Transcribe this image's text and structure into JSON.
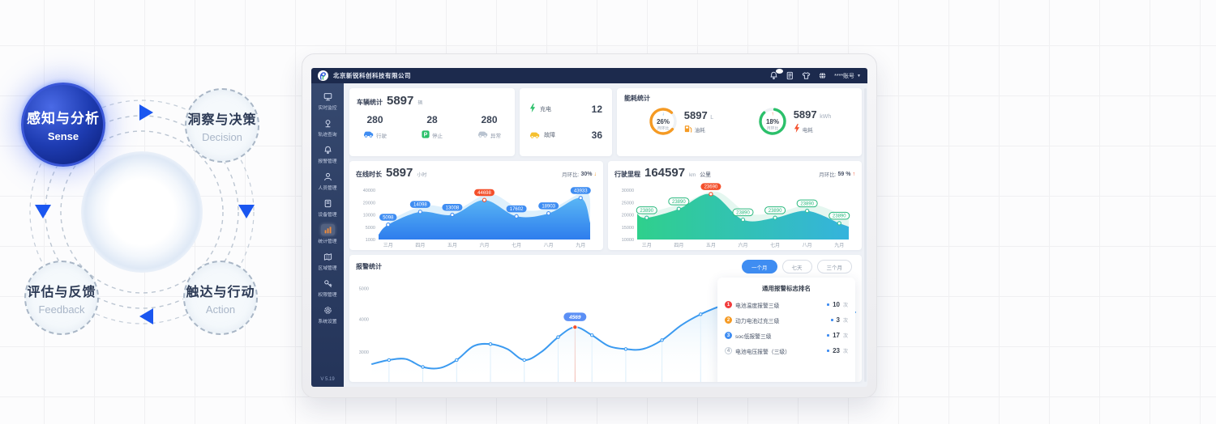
{
  "colors": {
    "accent_blue": "#3f8df2",
    "navy": "#1c2a4d",
    "orange": "#f59a23",
    "green": "#2bc06a",
    "red": "#f4502c",
    "teal": "#2fd08c"
  },
  "diagram": {
    "nodes": [
      {
        "id": "sense",
        "title": "感知与分析",
        "subtitle": "Sense",
        "active": true
      },
      {
        "id": "decision",
        "title": "洞察与决策",
        "subtitle": "Decision",
        "active": false
      },
      {
        "id": "feedback",
        "title": "评估与反馈",
        "subtitle": "Feedback",
        "active": false
      },
      {
        "id": "action",
        "title": "触达与行动",
        "subtitle": "Action",
        "active": false
      }
    ]
  },
  "navbar": {
    "company": "北京新锐科创科技有限公司",
    "account": "****账号",
    "icons": [
      "bell-icon",
      "document-icon",
      "theme-shirt-icon",
      "globe-icon"
    ]
  },
  "sidebar": {
    "version": "V 5.19",
    "items": [
      {
        "label": "实时监控",
        "icon": "monitor-icon",
        "active": false
      },
      {
        "label": "轨迹查询",
        "icon": "track-icon",
        "active": false
      },
      {
        "label": "报警管理",
        "icon": "alarm-icon",
        "active": false
      },
      {
        "label": "人员管理",
        "icon": "user-icon",
        "active": false
      },
      {
        "label": "设备管理",
        "icon": "device-icon",
        "active": false
      },
      {
        "label": "统计管理",
        "icon": "stats-icon",
        "active": true
      },
      {
        "label": "区域管理",
        "icon": "region-icon",
        "active": false
      },
      {
        "label": "权限管理",
        "icon": "permission-icon",
        "active": false
      },
      {
        "label": "系统设置",
        "icon": "settings-icon",
        "active": false
      }
    ]
  },
  "vehicle_card": {
    "title": "车辆统计",
    "total": "5897",
    "unit": "辆",
    "stats": [
      {
        "value": "280",
        "label": "行驶",
        "icon": "car-icon",
        "color": "#3f8df2"
      },
      {
        "value": "28",
        "label": "停止",
        "icon": "parking-icon",
        "color": "#2bc06a"
      },
      {
        "value": "280",
        "label": "异常",
        "icon": "car-icon",
        "color": "#b9c3d0"
      }
    ]
  },
  "charging_card": {
    "rows": [
      {
        "label": "充电",
        "value": "12",
        "icon": "bolt-icon",
        "color": "#2bc06a"
      },
      {
        "label": "故障",
        "value": "36",
        "icon": "car-icon",
        "color": "#f5c02f"
      }
    ]
  },
  "energy_card": {
    "title": "能耗统计",
    "gauges": [
      {
        "percent": "26%",
        "caption": "月环比",
        "value": "5897",
        "unit": "L",
        "label": "油耗",
        "icon": "fuel-icon",
        "color": "#f59a23",
        "arrow": "down",
        "arrow_color": "#4aa3f0",
        "arc": 0.76,
        "rot": 40
      },
      {
        "percent": "18%",
        "caption": "月环比",
        "value": "5897",
        "unit": "kWh",
        "label": "电耗",
        "icon": "bolt-icon",
        "color": "#2bc06a",
        "arrow": "up",
        "arrow_color": "#f4502c",
        "arc": 0.85,
        "rot": -80
      }
    ]
  },
  "ranking": {
    "title": "通用报警标志排名",
    "count_unit": "次",
    "items": [
      {
        "rank": "1",
        "label": "电池温度报警三级",
        "count": "10",
        "color": "#f23c3c"
      },
      {
        "rank": "2",
        "label": "动力电池过充三级",
        "count": "3",
        "color": "#f59a23"
      },
      {
        "rank": "3",
        "label": "soc低报警三级",
        "count": "17",
        "color": "#3f8df2"
      },
      {
        "rank": "4",
        "label": "电池电压报警（三级）",
        "count": "23",
        "color": "outline"
      }
    ]
  },
  "chart_data": [
    {
      "id": "online",
      "type": "area",
      "title": "在线时长",
      "total": "5897",
      "unit": "小时",
      "mom_label": "月环比:",
      "mom_value": "30%",
      "mom_direction": "down",
      "mom_color": "#f59a23",
      "y_ticks": [
        "40000",
        "20000",
        "10000",
        "5000",
        "1000"
      ],
      "categories": [
        "三月",
        "四月",
        "五月",
        "六月",
        "七月",
        "八月",
        "九月"
      ],
      "values": [
        5098,
        14098,
        13008,
        44698,
        17602,
        18903,
        43933
      ],
      "hot_index": 3,
      "heights": [
        0.3,
        0.56,
        0.5,
        0.8,
        0.47,
        0.53,
        0.84
      ],
      "edge_heights": [
        0.1,
        0.34
      ],
      "badge_style": "fill",
      "colors": {
        "fill": [
          "#59b6f5",
          "#2e7ded"
        ],
        "gradient_dir": "v",
        "echo": "#cde8fa",
        "badge": "#3f8df2",
        "hot": "#f4502c",
        "dot": "#3f8df2"
      }
    },
    {
      "id": "mileage",
      "type": "area",
      "title": "行驶里程",
      "total": "164597",
      "unit": "km",
      "unit2": "公里",
      "mom_label": "月环比:",
      "mom_value": "59 %",
      "mom_direction": "up",
      "mom_color": "#f4502c",
      "y_ticks": [
        "30000",
        "25000",
        "20000",
        "15000",
        "10000"
      ],
      "categories": [
        "三月",
        "四月",
        "五月",
        "六月",
        "七月",
        "八月",
        "九月"
      ],
      "values": [
        23890,
        23890,
        23690,
        23890,
        23890,
        23890,
        23890
      ],
      "hot_index": 2,
      "heights": [
        0.44,
        0.62,
        0.92,
        0.4,
        0.44,
        0.58,
        0.33
      ],
      "edge_heights": [
        0.52,
        0.26
      ],
      "badge_style": "outline",
      "colors": {
        "fill": [
          "#2fd08c",
          "#35b3dd"
        ],
        "gradient_dir": "h",
        "echo": "#d7f3e8",
        "badge": "#27b87c",
        "hot": "#f4502c",
        "dot": "#2fbf9a"
      }
    },
    {
      "id": "alarm",
      "type": "line",
      "title": "报警统计",
      "tabs": [
        {
          "label": "一个月",
          "active": true
        },
        {
          "label": "七天",
          "active": false
        },
        {
          "label": "三个月",
          "active": false
        }
      ],
      "y_ticks": [
        "5000",
        "4000",
        "3000"
      ],
      "y_tick_heights": [
        0.94,
        0.63,
        0.3
      ],
      "tooltip": "4569",
      "marked_index": 12,
      "points": [
        [
          0.0,
          0.18
        ],
        [
          0.035,
          0.22
        ],
        [
          0.07,
          0.23
        ],
        [
          0.105,
          0.15
        ],
        [
          0.14,
          0.14
        ],
        [
          0.175,
          0.22
        ],
        [
          0.21,
          0.36
        ],
        [
          0.245,
          0.38
        ],
        [
          0.28,
          0.33
        ],
        [
          0.315,
          0.22
        ],
        [
          0.35,
          0.3
        ],
        [
          0.385,
          0.45
        ],
        [
          0.42,
          0.55
        ],
        [
          0.455,
          0.47
        ],
        [
          0.49,
          0.36
        ],
        [
          0.525,
          0.33
        ],
        [
          0.56,
          0.33
        ],
        [
          0.6,
          0.42
        ],
        [
          0.64,
          0.57
        ],
        [
          0.68,
          0.68
        ],
        [
          0.72,
          0.76
        ],
        [
          0.76,
          0.82
        ],
        [
          0.8,
          0.84
        ],
        [
          0.845,
          0.8
        ],
        [
          0.89,
          0.76
        ],
        [
          0.94,
          0.72
        ],
        [
          1.0,
          0.7
        ]
      ],
      "colors": {
        "line": "#3b9af0",
        "fill": [
          "#d9edfb",
          "#ffffff"
        ],
        "guide": "#d9edfb",
        "marked": "#f4502c",
        "tooltip_bg": "#5b8ff5"
      }
    }
  ]
}
